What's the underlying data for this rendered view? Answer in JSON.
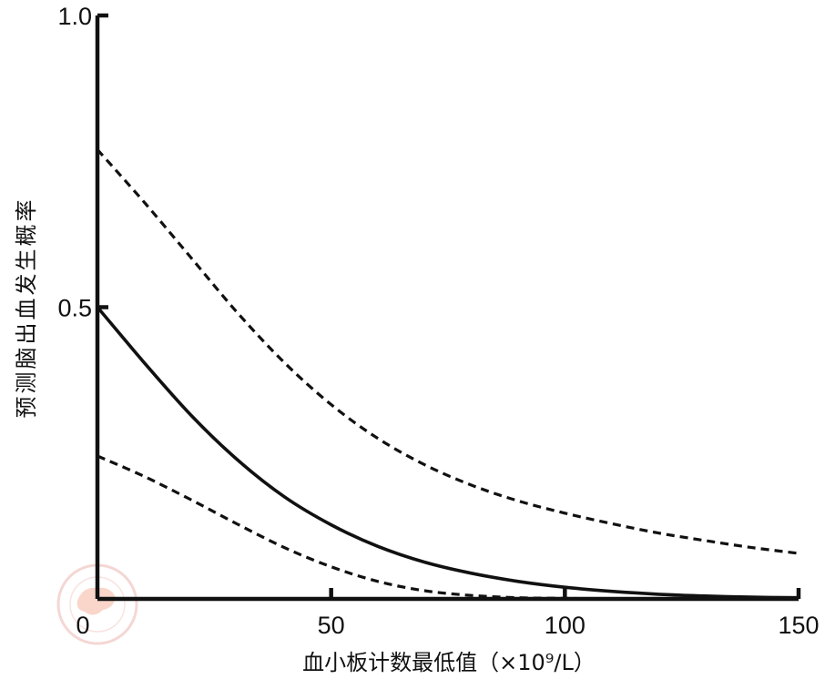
{
  "chart_data": {
    "type": "line",
    "title": "",
    "xlabel": "血小板计数最低值（×10⁹/L）",
    "ylabel": "预测脑出血发生概率",
    "xlim": [
      0,
      150
    ],
    "ylim": [
      0,
      1.0
    ],
    "x_ticks": [
      "0",
      "50",
      "100",
      "150"
    ],
    "y_ticks": [
      "0.5",
      "1.0"
    ],
    "grid": false,
    "legend": "none",
    "colors": {
      "line": "#111111"
    },
    "series": [
      {
        "style": "dashed",
        "points": [
          [
            0,
            0.77
          ],
          [
            10,
            0.68
          ],
          [
            20,
            0.585
          ],
          [
            30,
            0.49
          ],
          [
            40,
            0.405
          ],
          [
            50,
            0.333
          ],
          [
            60,
            0.275
          ],
          [
            70,
            0.23
          ],
          [
            80,
            0.195
          ],
          [
            90,
            0.168
          ],
          [
            100,
            0.147
          ],
          [
            110,
            0.129
          ],
          [
            120,
            0.113
          ],
          [
            130,
            0.1
          ],
          [
            140,
            0.088
          ],
          [
            150,
            0.078
          ]
        ]
      },
      {
        "style": "solid",
        "points": [
          [
            0,
            0.5
          ],
          [
            10,
            0.405
          ],
          [
            20,
            0.315
          ],
          [
            30,
            0.238
          ],
          [
            40,
            0.175
          ],
          [
            50,
            0.127
          ],
          [
            60,
            0.09
          ],
          [
            70,
            0.063
          ],
          [
            80,
            0.044
          ],
          [
            90,
            0.03
          ],
          [
            100,
            0.02
          ],
          [
            110,
            0.013
          ],
          [
            120,
            0.008
          ],
          [
            130,
            0.005
          ],
          [
            140,
            0.003
          ],
          [
            150,
            0.002
          ]
        ]
      },
      {
        "style": "dashed",
        "points": [
          [
            0,
            0.245
          ],
          [
            10,
            0.21
          ],
          [
            20,
            0.17
          ],
          [
            30,
            0.128
          ],
          [
            40,
            0.088
          ],
          [
            50,
            0.055
          ],
          [
            60,
            0.03
          ],
          [
            70,
            0.014
          ],
          [
            80,
            0.006
          ],
          [
            90,
            0.002
          ],
          [
            100,
            0.001
          ],
          [
            110,
            0.0
          ],
          [
            120,
            0.0
          ],
          [
            130,
            0.0
          ],
          [
            140,
            0.0
          ],
          [
            150,
            0.0
          ]
        ]
      }
    ]
  }
}
